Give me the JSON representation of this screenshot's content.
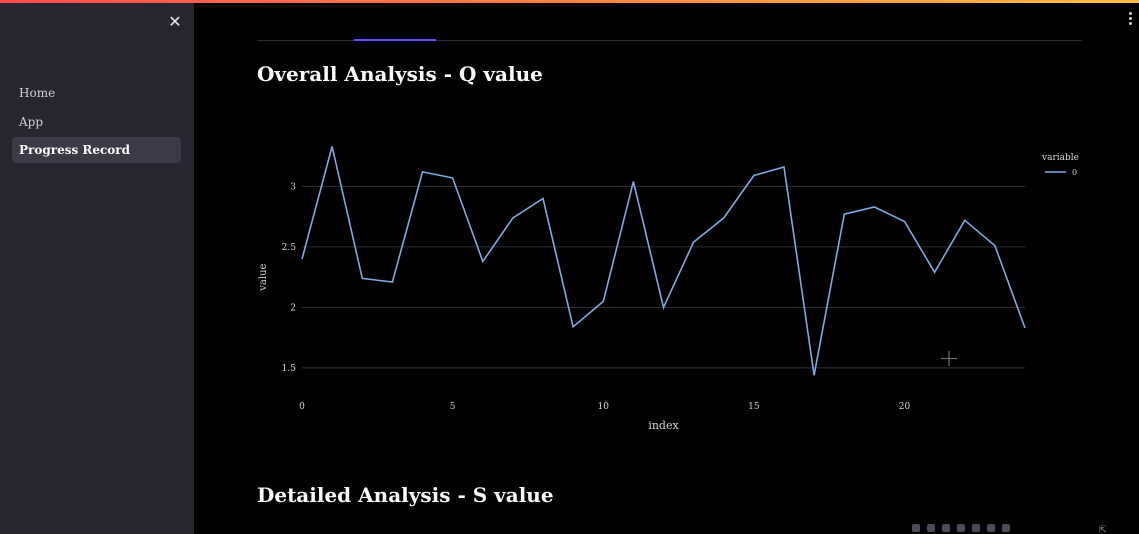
{
  "sidebar": {
    "close_glyph": "✕",
    "nav_items": [
      {
        "label": "Home",
        "active": false
      },
      {
        "label": "App",
        "active": false
      },
      {
        "label": "Progress Record",
        "active": true
      }
    ]
  },
  "main": {
    "overall_heading": "Overall Analysis - Q value",
    "detailed_heading": "Detailed Analysis - S value"
  },
  "colors": {
    "sidebar_bg": "#262730",
    "main_bg": "#000000",
    "line": "#7fa9e0",
    "tab_indicator": "#6b4bff"
  },
  "chart_data": {
    "type": "line",
    "title": "",
    "xlabel": "index",
    "ylabel": "value",
    "x_ticks": [
      "0",
      "5",
      "10",
      "15",
      "20"
    ],
    "y_ticks": [
      "1.5",
      "2",
      "2.5",
      "3"
    ],
    "xlim": [
      0,
      24
    ],
    "ylim": [
      1.5,
      3.0
    ],
    "grid": true,
    "legend_title": "variable",
    "legend_placement": "top-right",
    "series": [
      {
        "name": "0",
        "x": [
          0,
          1,
          2,
          3,
          4,
          5,
          6,
          7,
          8,
          9,
          10,
          11,
          12,
          13,
          14,
          15,
          16,
          17,
          18,
          19,
          20,
          21,
          22,
          23,
          24
        ],
        "values": [
          2.4,
          3.33,
          2.24,
          2.21,
          3.12,
          3.07,
          2.38,
          2.74,
          2.9,
          1.84,
          2.05,
          3.04,
          2.0,
          2.54,
          2.74,
          3.09,
          3.16,
          1.44,
          2.77,
          2.83,
          2.71,
          2.29,
          2.72,
          2.51,
          1.83
        ]
      }
    ]
  }
}
